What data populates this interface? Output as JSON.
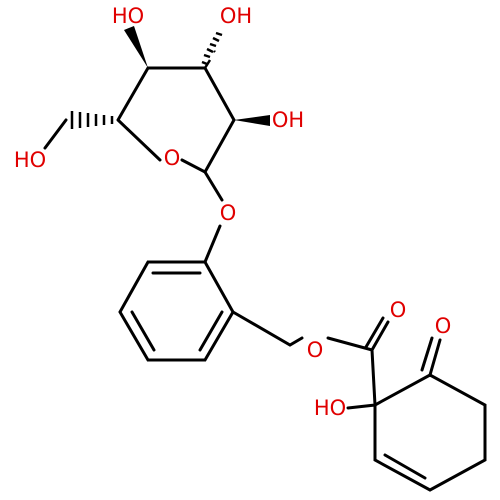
{
  "atoms": [
    "HO",
    "HO",
    "OH",
    "OH",
    "O",
    "O",
    "O",
    "O",
    "O",
    "HO"
  ]
}
